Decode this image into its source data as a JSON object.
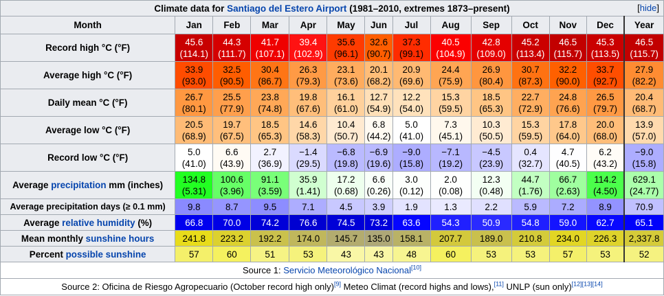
{
  "caption": {
    "prefix": "Climate data for ",
    "place": "Santiago del Estero Airport",
    "suffix": " (1981–2010, extremes 1873–present)",
    "hide_label": "hide"
  },
  "columns": [
    "Month",
    "Jan",
    "Feb",
    "Mar",
    "Apr",
    "May",
    "Jun",
    "Jul",
    "Aug",
    "Sep",
    "Oct",
    "Nov",
    "Dec",
    "Year"
  ],
  "rows": [
    {
      "label_parts": [
        {
          "t": "Record high °C (°F)",
          "link": false
        }
      ],
      "double": true,
      "cells": [
        {
          "a": "45.6",
          "b": "(114.1)",
          "bg": "#c80000",
          "fg": "#ffffff"
        },
        {
          "a": "44.3",
          "b": "(111.7)",
          "bg": "#d50000",
          "fg": "#ffffff"
        },
        {
          "a": "41.7",
          "b": "(107.1)",
          "bg": "#ef0000",
          "fg": "#ffffff"
        },
        {
          "a": "39.4",
          "b": "(102.9)",
          "bg": "#ff1212",
          "fg": "#ffffff"
        },
        {
          "a": "35.6",
          "b": "(96.1)",
          "bg": "#ff3b00",
          "fg": "#000000"
        },
        {
          "a": "32.6",
          "b": "(90.7)",
          "bg": "#ff5d00",
          "fg": "#000000"
        },
        {
          "a": "37.3",
          "b": "(99.1)",
          "bg": "#ff2c00",
          "fg": "#000000"
        },
        {
          "a": "40.5",
          "b": "(104.9)",
          "bg": "#fb0000",
          "fg": "#ffffff"
        },
        {
          "a": "42.8",
          "b": "(109.0)",
          "bg": "#e40000",
          "fg": "#ffffff"
        },
        {
          "a": "45.2",
          "b": "(113.4)",
          "bg": "#cb0000",
          "fg": "#ffffff"
        },
        {
          "a": "46.5",
          "b": "(115.7)",
          "bg": "#c20000",
          "fg": "#ffffff"
        },
        {
          "a": "45.3",
          "b": "(113.5)",
          "bg": "#ca0000",
          "fg": "#ffffff"
        },
        {
          "a": "46.5",
          "b": "(115.7)",
          "bg": "#c20000",
          "fg": "#ffffff",
          "year": true
        }
      ]
    },
    {
      "label_parts": [
        {
          "t": "Average high °C (°F)",
          "link": false
        }
      ],
      "double": true,
      "cells": [
        {
          "a": "33.9",
          "b": "(93.0)",
          "bg": "#ff4c00",
          "fg": "#000000"
        },
        {
          "a": "32.5",
          "b": "(90.5)",
          "bg": "#ff5d00",
          "fg": "#000000"
        },
        {
          "a": "30.4",
          "b": "(86.7)",
          "bg": "#ff7515",
          "fg": "#000000"
        },
        {
          "a": "26.3",
          "b": "(79.3)",
          "bg": "#ff9a45",
          "fg": "#000000"
        },
        {
          "a": "23.1",
          "b": "(73.6)",
          "bg": "#ffac5e",
          "fg": "#000000"
        },
        {
          "a": "20.1",
          "b": "(68.2)",
          "bg": "#ffbd78",
          "fg": "#000000"
        },
        {
          "a": "20.9",
          "b": "(69.6)",
          "bg": "#ffb972",
          "fg": "#000000"
        },
        {
          "a": "24.4",
          "b": "(75.9)",
          "bg": "#ffa553",
          "fg": "#000000"
        },
        {
          "a": "26.9",
          "b": "(80.4)",
          "bg": "#ff963f",
          "fg": "#000000"
        },
        {
          "a": "30.7",
          "b": "(87.3)",
          "bg": "#ff7212",
          "fg": "#000000"
        },
        {
          "a": "32.2",
          "b": "(90.0)",
          "bg": "#ff6000",
          "fg": "#000000"
        },
        {
          "a": "33.7",
          "b": "(92.7)",
          "bg": "#ff4e00",
          "fg": "#000000"
        },
        {
          "a": "27.9",
          "b": "(82.2)",
          "bg": "#ff8c32",
          "fg": "#000000",
          "year": true
        }
      ]
    },
    {
      "label_parts": [
        {
          "t": "Daily mean °C (°F)",
          "link": false
        }
      ],
      "double": true,
      "cells": [
        {
          "a": "26.7",
          "b": "(80.1)",
          "bg": "#ff9841",
          "fg": "#000000"
        },
        {
          "a": "25.5",
          "b": "(77.9)",
          "bg": "#ff9f4c",
          "fg": "#000000"
        },
        {
          "a": "23.8",
          "b": "(74.8)",
          "bg": "#ffa857",
          "fg": "#000000"
        },
        {
          "a": "19.8",
          "b": "(67.6)",
          "bg": "#ffbe7a",
          "fg": "#000000"
        },
        {
          "a": "16.1",
          "b": "(61.0)",
          "bg": "#ffd19c",
          "fg": "#000000"
        },
        {
          "a": "12.7",
          "b": "(54.9)",
          "bg": "#ffe0b8",
          "fg": "#000000"
        },
        {
          "a": "12.2",
          "b": "(54.0)",
          "bg": "#ffe2bc",
          "fg": "#000000"
        },
        {
          "a": "15.3",
          "b": "(59.5)",
          "bg": "#ffd4a2",
          "fg": "#000000"
        },
        {
          "a": "18.5",
          "b": "(65.3)",
          "bg": "#ffc584",
          "fg": "#000000"
        },
        {
          "a": "22.7",
          "b": "(72.9)",
          "bg": "#ffae61",
          "fg": "#000000"
        },
        {
          "a": "24.8",
          "b": "(76.6)",
          "bg": "#ffa350",
          "fg": "#000000"
        },
        {
          "a": "26.5",
          "b": "(79.7)",
          "bg": "#ff9943",
          "fg": "#000000"
        },
        {
          "a": "20.4",
          "b": "(68.7)",
          "bg": "#ffbb76",
          "fg": "#000000",
          "year": true
        }
      ]
    },
    {
      "label_parts": [
        {
          "t": "Average low °C (°F)",
          "link": false
        }
      ],
      "double": true,
      "cells": [
        {
          "a": "20.5",
          "b": "(68.9)",
          "bg": "#ffbb76",
          "fg": "#000000"
        },
        {
          "a": "19.7",
          "b": "(67.5)",
          "bg": "#ffbf7c",
          "fg": "#000000"
        },
        {
          "a": "18.5",
          "b": "(65.3)",
          "bg": "#ffc584",
          "fg": "#000000"
        },
        {
          "a": "14.6",
          "b": "(58.3)",
          "bg": "#ffd7a8",
          "fg": "#000000"
        },
        {
          "a": "10.4",
          "b": "(50.7)",
          "bg": "#ffead1",
          "fg": "#000000"
        },
        {
          "a": "6.8",
          "b": "(44.2)",
          "bg": "#fffaf2",
          "fg": "#000000"
        },
        {
          "a": "5.0",
          "b": "(41.0)",
          "bg": "#ffffff",
          "fg": "#000000"
        },
        {
          "a": "7.3",
          "b": "(45.1)",
          "bg": "#fff8ed",
          "fg": "#000000"
        },
        {
          "a": "10.3",
          "b": "(50.5)",
          "bg": "#ffebd2",
          "fg": "#000000"
        },
        {
          "a": "15.3",
          "b": "(59.5)",
          "bg": "#ffd4a2",
          "fg": "#000000"
        },
        {
          "a": "17.8",
          "b": "(64.0)",
          "bg": "#ffc88b",
          "fg": "#000000"
        },
        {
          "a": "20.0",
          "b": "(68.0)",
          "bg": "#ffbd79",
          "fg": "#000000"
        },
        {
          "a": "13.9",
          "b": "(57.0)",
          "bg": "#ffdaae",
          "fg": "#000000",
          "year": true
        }
      ]
    },
    {
      "label_parts": [
        {
          "t": "Record low °C (°F)",
          "link": false
        }
      ],
      "double": true,
      "cells": [
        {
          "a": "5.0",
          "b": "(41.0)",
          "bg": "#ffffff",
          "fg": "#000000"
        },
        {
          "a": "6.6",
          "b": "(43.9)",
          "bg": "#fffbf4",
          "fg": "#000000"
        },
        {
          "a": "2.7",
          "b": "(36.9)",
          "bg": "#f2f2ff",
          "fg": "#000000"
        },
        {
          "a": "−1.4",
          "b": "(29.5)",
          "bg": "#dadaff",
          "fg": "#000000"
        },
        {
          "a": "−6.8",
          "b": "(19.8)",
          "bg": "#babaff",
          "fg": "#000000"
        },
        {
          "a": "−6.9",
          "b": "(19.6)",
          "bg": "#babaff",
          "fg": "#000000"
        },
        {
          "a": "−9.0",
          "b": "(15.8)",
          "bg": "#adadff",
          "fg": "#000000"
        },
        {
          "a": "−7.1",
          "b": "(19.2)",
          "bg": "#b8b8ff",
          "fg": "#000000"
        },
        {
          "a": "−4.5",
          "b": "(23.9)",
          "bg": "#c8c8ff",
          "fg": "#000000"
        },
        {
          "a": "0.4",
          "b": "(32.7)",
          "bg": "#e5e5ff",
          "fg": "#000000"
        },
        {
          "a": "4.7",
          "b": "(40.5)",
          "bg": "#fefeff",
          "fg": "#000000"
        },
        {
          "a": "6.2",
          "b": "(43.2)",
          "bg": "#fffcf7",
          "fg": "#000000"
        },
        {
          "a": "−9.0",
          "b": "(15.8)",
          "bg": "#adadff",
          "fg": "#000000",
          "year": true
        }
      ]
    },
    {
      "label_parts": [
        {
          "t": "Average ",
          "link": false
        },
        {
          "t": "precipitation",
          "link": true
        },
        {
          "t": " mm (inches)",
          "link": false
        }
      ],
      "double": true,
      "cells": [
        {
          "a": "134.8",
          "b": "(5.31)",
          "bg": "#22ff22",
          "fg": "#000000"
        },
        {
          "a": "100.6",
          "b": "(3.96)",
          "bg": "#66ff66",
          "fg": "#000000"
        },
        {
          "a": "91.1",
          "b": "(3.59)",
          "bg": "#79ff79",
          "fg": "#000000"
        },
        {
          "a": "35.9",
          "b": "(1.41)",
          "bg": "#d0ffd0",
          "fg": "#000000"
        },
        {
          "a": "17.2",
          "b": "(0.68)",
          "bg": "#eeffee",
          "fg": "#000000"
        },
        {
          "a": "6.6",
          "b": "(0.26)",
          "bg": "#f9fff9",
          "fg": "#000000"
        },
        {
          "a": "3.0",
          "b": "(0.12)",
          "bg": "#fdfffd",
          "fg": "#000000"
        },
        {
          "a": "2.0",
          "b": "(0.08)",
          "bg": "#fefffe",
          "fg": "#000000"
        },
        {
          "a": "12.3",
          "b": "(0.48)",
          "bg": "#f3fff3",
          "fg": "#000000"
        },
        {
          "a": "44.7",
          "b": "(1.76)",
          "bg": "#c2ffc2",
          "fg": "#000000"
        },
        {
          "a": "66.7",
          "b": "(2.63)",
          "bg": "#9fff9f",
          "fg": "#000000"
        },
        {
          "a": "114.2",
          "b": "(4.50)",
          "bg": "#4bff4b",
          "fg": "#000000"
        },
        {
          "a": "629.1",
          "b": "(24.77)",
          "bg": "#abffab",
          "fg": "#000000",
          "year": true
        }
      ]
    },
    {
      "label_parts": [
        {
          "t": "Average precipitation days (≥ 0.1 mm)",
          "link": false
        }
      ],
      "double": false,
      "small": true,
      "cells": [
        {
          "a": "9.8",
          "bg": "#8a8aff",
          "fg": "#000000"
        },
        {
          "a": "8.7",
          "bg": "#9595ff",
          "fg": "#000000"
        },
        {
          "a": "9.5",
          "bg": "#8d8dff",
          "fg": "#000000"
        },
        {
          "a": "7.1",
          "bg": "#adadff",
          "fg": "#000000"
        },
        {
          "a": "4.5",
          "bg": "#c8c8ff",
          "fg": "#000000"
        },
        {
          "a": "3.9",
          "bg": "#cfcfff",
          "fg": "#000000"
        },
        {
          "a": "1.9",
          "bg": "#e3e3ff",
          "fg": "#000000"
        },
        {
          "a": "1.3",
          "bg": "#eaeaff",
          "fg": "#000000"
        },
        {
          "a": "2.2",
          "bg": "#e0e0ff",
          "fg": "#000000"
        },
        {
          "a": "5.9",
          "bg": "#babaff",
          "fg": "#000000"
        },
        {
          "a": "7.2",
          "bg": "#abacff",
          "fg": "#000000"
        },
        {
          "a": "8.9",
          "bg": "#9393ff",
          "fg": "#000000"
        },
        {
          "a": "70.9",
          "bg": "#c0c0ff",
          "fg": "#000000",
          "year": true
        }
      ]
    },
    {
      "label_parts": [
        {
          "t": "Average ",
          "link": false
        },
        {
          "t": "relative humidity",
          "link": true
        },
        {
          "t": " (%)",
          "link": false
        }
      ],
      "double": false,
      "cells": [
        {
          "a": "66.8",
          "bg": "#0000ef",
          "fg": "#ffffff"
        },
        {
          "a": "70.0",
          "bg": "#0000e5",
          "fg": "#ffffff"
        },
        {
          "a": "74.2",
          "bg": "#0000d8",
          "fg": "#ffffff"
        },
        {
          "a": "76.6",
          "bg": "#0000d1",
          "fg": "#ffffff"
        },
        {
          "a": "74.5",
          "bg": "#0000d7",
          "fg": "#ffffff"
        },
        {
          "a": "73.2",
          "bg": "#0000db",
          "fg": "#ffffff"
        },
        {
          "a": "63.6",
          "bg": "#0505ff",
          "fg": "#ffffff"
        },
        {
          "a": "54.3",
          "bg": "#2020ff",
          "fg": "#ffffff"
        },
        {
          "a": "50.9",
          "bg": "#2a2aff",
          "fg": "#ffffff"
        },
        {
          "a": "54.8",
          "bg": "#1f1fff",
          "fg": "#ffffff"
        },
        {
          "a": "59.0",
          "bg": "#1414ff",
          "fg": "#ffffff"
        },
        {
          "a": "62.7",
          "bg": "#0808ff",
          "fg": "#ffffff"
        },
        {
          "a": "65.1",
          "bg": "#0101fb",
          "fg": "#ffffff",
          "year": true
        }
      ]
    },
    {
      "label_parts": [
        {
          "t": "Mean monthly ",
          "link": false
        },
        {
          "t": "sunshine hours",
          "link": true
        }
      ],
      "double": false,
      "cells": [
        {
          "a": "241.8",
          "bg": "#e8dc1a",
          "fg": "#000000"
        },
        {
          "a": "223.2",
          "bg": "#dcd12e",
          "fg": "#000000"
        },
        {
          "a": "192.2",
          "bg": "#cac14c",
          "fg": "#000000"
        },
        {
          "a": "174.0",
          "bg": "#c0b75c",
          "fg": "#000000"
        },
        {
          "a": "145.7",
          "bg": "#b3ac6f",
          "fg": "#000000"
        },
        {
          "a": "135.0",
          "bg": "#aea877",
          "fg": "#000000"
        },
        {
          "a": "158.1",
          "bg": "#b9b266",
          "fg": "#000000"
        },
        {
          "a": "207.7",
          "bg": "#d3c93c",
          "fg": "#000000"
        },
        {
          "a": "189.0",
          "bg": "#c9c04d",
          "fg": "#000000"
        },
        {
          "a": "210.8",
          "bg": "#d4cb3a",
          "fg": "#000000"
        },
        {
          "a": "234.0",
          "bg": "#e2d624",
          "fg": "#000000"
        },
        {
          "a": "226.3",
          "bg": "#ded32b",
          "fg": "#000000"
        },
        {
          "a": "2,337.8",
          "bg": "#d5cb39",
          "fg": "#000000",
          "year": true
        }
      ]
    },
    {
      "label_parts": [
        {
          "t": "Percent ",
          "link": false
        },
        {
          "t": "possible sunshine",
          "link": true
        }
      ],
      "double": false,
      "cells": [
        {
          "a": "57",
          "bg": "#f4f06a",
          "fg": "#000000"
        },
        {
          "a": "60",
          "bg": "#f5f15f",
          "fg": "#000000"
        },
        {
          "a": "51",
          "bg": "#f6f384",
          "fg": "#000000"
        },
        {
          "a": "53",
          "bg": "#f5f27c",
          "fg": "#000000"
        },
        {
          "a": "43",
          "bg": "#f9f7a6",
          "fg": "#000000"
        },
        {
          "a": "43",
          "bg": "#f9f7a6",
          "fg": "#000000"
        },
        {
          "a": "48",
          "bg": "#f7f591",
          "fg": "#000000"
        },
        {
          "a": "60",
          "bg": "#f5f15f",
          "fg": "#000000"
        },
        {
          "a": "53",
          "bg": "#f5f27c",
          "fg": "#000000"
        },
        {
          "a": "53",
          "bg": "#f5f27c",
          "fg": "#000000"
        },
        {
          "a": "57",
          "bg": "#f4f06a",
          "fg": "#000000"
        },
        {
          "a": "53",
          "bg": "#f5f27c",
          "fg": "#000000"
        },
        {
          "a": "52",
          "bg": "#f5f280",
          "fg": "#000000",
          "year": true
        }
      ]
    }
  ],
  "source1": {
    "prefix": "Source 1: ",
    "link": "Servicio Meteorológico Nacional",
    "ref": "[10]"
  },
  "source2": {
    "text1": "Source 2: Oficina de Riesgo Agropecuario (October record high only)",
    "ref1": "[9]",
    "text2": " Meteo Climat (record highs and lows),",
    "ref2": "[11]",
    "text3": " UNLP (sun only)",
    "ref3": "[12][13][14]"
  }
}
